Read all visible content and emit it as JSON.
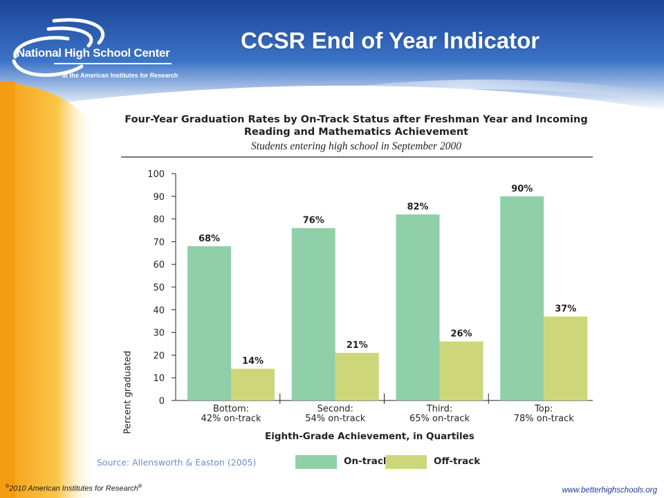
{
  "header": {
    "logo_name": "National High School Center",
    "logo_subtitle": "at the American Institutes for Research",
    "slide_title": "CCSR End of Year Indicator"
  },
  "colors": {
    "header_blue": "#1e4fa3",
    "sidebar_orange": "#f7a81b",
    "on_track": "#8fd0a8",
    "off_track": "#cdd77a",
    "source_text": "#6e8cc4",
    "website_text": "#1e3a8c"
  },
  "chart_data": {
    "type": "bar",
    "title": "Four-Year Graduation Rates by On-Track Status after Freshman Year and Incoming Reading and Mathematics Achievement",
    "subtitle": "Students entering high school in September 2000",
    "xlabel": "Eighth-Grade Achievement, in Quartiles",
    "ylabel": "Percent graduated",
    "ylim": [
      0,
      100
    ],
    "yticks": [
      0,
      10,
      20,
      30,
      40,
      50,
      60,
      70,
      80,
      90,
      100
    ],
    "grid": false,
    "legend_position": "bottom",
    "categories": [
      [
        "Bottom:",
        "42% on-track"
      ],
      [
        "Second:",
        "54% on-track"
      ],
      [
        "Third:",
        "65% on-track"
      ],
      [
        "Top:",
        "78% on-track"
      ]
    ],
    "series": [
      {
        "name": "On-track",
        "values": [
          68,
          76,
          82,
          90
        ],
        "labels": [
          "68%",
          "76%",
          "82%",
          "90%"
        ],
        "color": "#8fd0a8"
      },
      {
        "name": "Off-track",
        "values": [
          14,
          21,
          26,
          37
        ],
        "labels": [
          "14%",
          "21%",
          "26%",
          "37%"
        ],
        "color": "#cdd77a"
      }
    ]
  },
  "footer": {
    "source": "Source: Allensworth & Easton (2005)",
    "copyright_symbol": "©",
    "copyright": "2010 American Institutes for Research",
    "registered": "®",
    "website": "www.betterhighschools.org"
  }
}
